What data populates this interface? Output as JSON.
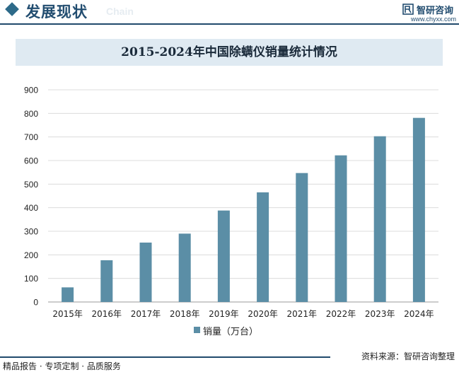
{
  "header": {
    "section_title": "发展现状",
    "chain_word": "Chain",
    "brand_name": "智研咨询",
    "brand_url": "www.chyxx.com"
  },
  "colors": {
    "bar": "#5b8ea6",
    "grid": "#dcdcdc",
    "title_bar_bg": "#dfeaf2",
    "accent": "#214a6c"
  },
  "chart_data": {
    "type": "bar",
    "title": "2015-2024年中国除螨仪销量统计情况",
    "categories": [
      "2015年",
      "2016年",
      "2017年",
      "2018年",
      "2019年",
      "2020年",
      "2021年",
      "2022年",
      "2023年",
      "2024年"
    ],
    "series": [
      {
        "name": "销量（万台）",
        "values": [
          62,
          177,
          252,
          290,
          388,
          465,
          547,
          622,
          703,
          781
        ]
      }
    ],
    "yticks": [
      0,
      100,
      200,
      300,
      400,
      500,
      600,
      700,
      800,
      900
    ],
    "ylim": [
      0,
      900
    ],
    "grid": true,
    "legend_position": "bottom"
  },
  "footer": {
    "left_text": "精品报告 · 专项定制 · 品质服务",
    "source_text": "资料来源：智研咨询整理"
  }
}
